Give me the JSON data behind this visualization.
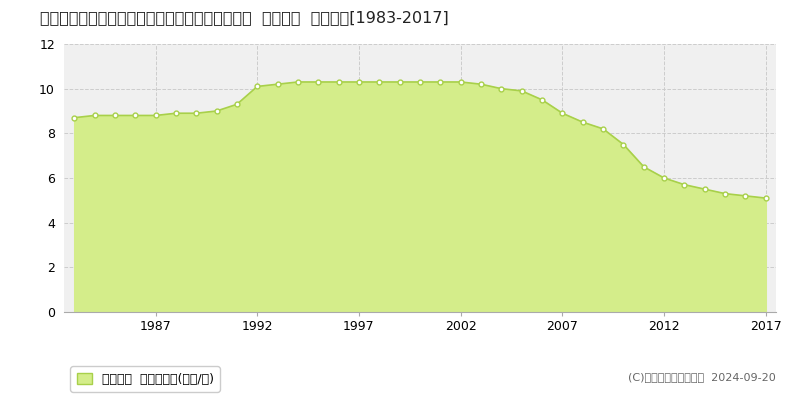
{
  "title": "徳島県鳴門市鳴門町土佐泊浦字高砂１７７番４外  公示地価  地価推移[1983-2017]",
  "years": [
    1983,
    1984,
    1985,
    1986,
    1987,
    1988,
    1989,
    1990,
    1991,
    1992,
    1993,
    1994,
    1995,
    1996,
    1997,
    1998,
    1999,
    2000,
    2001,
    2002,
    2003,
    2004,
    2005,
    2006,
    2007,
    2008,
    2009,
    2010,
    2011,
    2012,
    2013,
    2014,
    2015,
    2016,
    2017
  ],
  "values": [
    8.7,
    8.8,
    8.8,
    8.8,
    8.8,
    8.9,
    8.9,
    9.0,
    9.3,
    10.1,
    10.2,
    10.3,
    10.3,
    10.3,
    10.3,
    10.3,
    10.3,
    10.3,
    10.3,
    10.3,
    10.2,
    10.0,
    9.9,
    9.5,
    8.9,
    8.5,
    8.2,
    7.5,
    6.5,
    6.0,
    5.7,
    5.5,
    5.3,
    5.2,
    5.1
  ],
  "line_color": "#a8d04a",
  "fill_color": "#d4ed8a",
  "marker_color": "#ffffff",
  "marker_edge_color": "#a8d04a",
  "background_color": "#ffffff",
  "plot_bg_color": "#f0f0f0",
  "grid_color": "#cccccc",
  "ylim": [
    0,
    12
  ],
  "yticks": [
    0,
    2,
    4,
    6,
    8,
    10,
    12
  ],
  "xticks": [
    1987,
    1992,
    1997,
    2002,
    2007,
    2012,
    2017
  ],
  "legend_label": "公示地価  平均坪単価(万円/坪)",
  "copyright_text": "(C)土地価格ドットコム  2024-09-20",
  "title_fontsize": 11.5,
  "tick_fontsize": 9,
  "legend_fontsize": 9,
  "copyright_fontsize": 8
}
